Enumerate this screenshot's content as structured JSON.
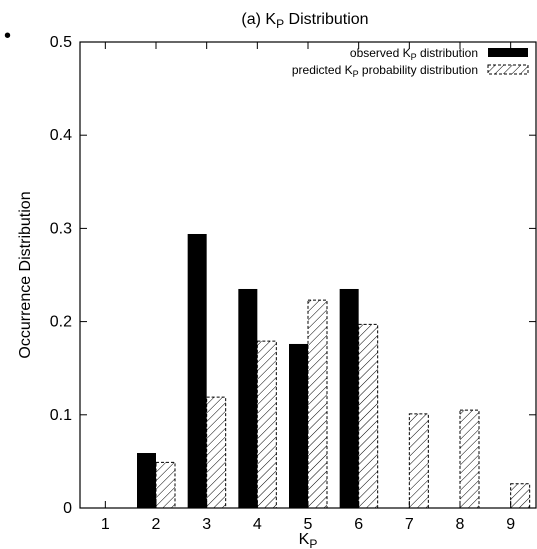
{
  "chart_data": {
    "type": "bar",
    "title_main": "(a) K",
    "title_sub": "P",
    "title_tail": " Distribution",
    "xlabel_main": "K",
    "xlabel_sub": "P",
    "ylabel": "Occurrence Distribution",
    "categories": [
      "1",
      "2",
      "3",
      "4",
      "5",
      "6",
      "7",
      "8",
      "9"
    ],
    "ylim": [
      0,
      0.5
    ],
    "yticks": [
      "0",
      "0.1",
      "0.2",
      "0.3",
      "0.4",
      "0.5"
    ],
    "legend_position": "top-right",
    "series": [
      {
        "legend_pre": "observed K",
        "legend_sub": "P",
        "legend_post": " distribution",
        "style": "solid",
        "color": "#000000",
        "values": [
          0,
          0.059,
          0.294,
          0.235,
          0.176,
          0.235,
          0,
          0,
          0
        ]
      },
      {
        "legend_pre": "predicted K",
        "legend_sub": "P",
        "legend_post": " probability distribution",
        "style": "hatched",
        "color": "#000000",
        "values": [
          0,
          0.049,
          0.119,
          0.179,
          0.223,
          0.197,
          0.101,
          0.105,
          0.026
        ]
      }
    ]
  }
}
